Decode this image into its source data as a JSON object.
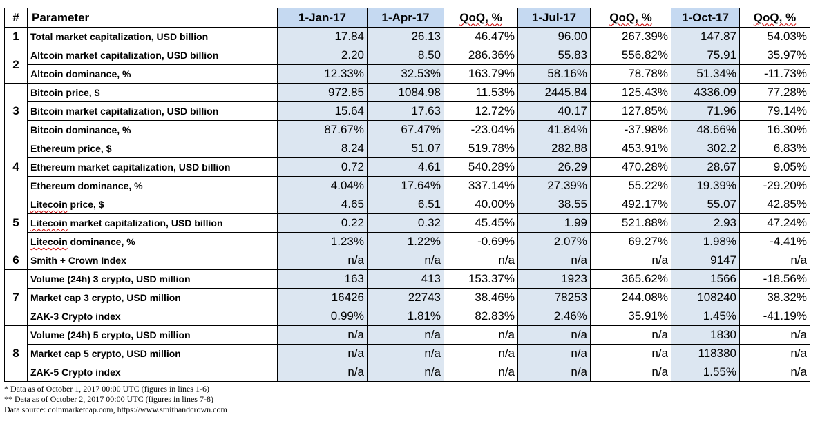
{
  "columns": [
    "#",
    "Parameter",
    "1-Jan-17",
    "1-Apr-17",
    "QoQ, %",
    "1-Jul-17",
    "QoQ, %",
    "1-Oct-17",
    "QoQ, %"
  ],
  "groups": [
    {
      "num": "1",
      "rows": [
        {
          "param": "Total market capitalization, USD billion",
          "values": [
            "17.84",
            "26.13",
            "46.47%",
            "96.00",
            "267.39%",
            "147.87",
            "54.03%"
          ]
        }
      ]
    },
    {
      "num": "2",
      "rows": [
        {
          "param": "Altcoin market capitalization, USD billion",
          "values": [
            "2.20",
            "8.50",
            "286.36%",
            "55.83",
            "556.82%",
            "75.91",
            "35.97%"
          ]
        },
        {
          "param": "Altcoin dominance, %",
          "values": [
            "12.33%",
            "32.53%",
            "163.79%",
            "58.16%",
            "78.78%",
            "51.34%",
            "-11.73%"
          ]
        }
      ]
    },
    {
      "num": "3",
      "rows": [
        {
          "param": "Bitcoin price, $",
          "values": [
            "972.85",
            "1084.98",
            "11.53%",
            "2445.84",
            "125.43%",
            "4336.09",
            "77.28%"
          ]
        },
        {
          "param": "Bitcoin market capitalization, USD billion",
          "values": [
            "15.64",
            "17.63",
            "12.72%",
            "40.17",
            "127.85%",
            "71.96",
            "79.14%"
          ]
        },
        {
          "param": "Bitcoin dominance, %",
          "values": [
            "87.67%",
            "67.47%",
            "-23.04%",
            "41.84%",
            "-37.98%",
            "48.66%",
            "16.30%"
          ]
        }
      ]
    },
    {
      "num": "4",
      "rows": [
        {
          "param": "Ethereum price, $",
          "values": [
            "8.24",
            "51.07",
            "519.78%",
            "282.88",
            "453.91%",
            "302.2",
            "6.83%"
          ]
        },
        {
          "param": "Ethereum market capitalization, USD billion",
          "values": [
            "0.72",
            "4.61",
            "540.28%",
            "26.29",
            "470.28%",
            "28.67",
            "9.05%"
          ]
        },
        {
          "param": "Ethereum dominance, %",
          "values": [
            "4.04%",
            "17.64%",
            "337.14%",
            "27.39%",
            "55.22%",
            "19.39%",
            "-29.20%"
          ]
        }
      ]
    },
    {
      "num": "5",
      "rows": [
        {
          "param_word": "Litecoin",
          "param_rest": " price, $",
          "values": [
            "4.65",
            "6.51",
            "40.00%",
            "38.55",
            "492.17%",
            "55.07",
            "42.85%"
          ]
        },
        {
          "param_word": "Litecoin",
          "param_rest": " market capitalization, USD billion",
          "values": [
            "0.22",
            "0.32",
            "45.45%",
            "1.99",
            "521.88%",
            "2.93",
            "47.24%"
          ]
        },
        {
          "param_word": "Litecoin",
          "param_rest": " dominance, %",
          "values": [
            "1.23%",
            "1.22%",
            "-0.69%",
            "2.07%",
            "69.27%",
            "1.98%",
            "-4.41%"
          ]
        }
      ]
    },
    {
      "num": "6",
      "rows": [
        {
          "param": "Smith + Crown Index",
          "values": [
            "n/a",
            "n/a",
            "n/a",
            "n/a",
            "n/a",
            "9147",
            "n/a"
          ]
        }
      ]
    },
    {
      "num": "7",
      "rows": [
        {
          "param": "Volume (24h) 3 crypto, USD million",
          "values": [
            "163",
            "413",
            "153.37%",
            "1923",
            "365.62%",
            "1566",
            "-18.56%"
          ]
        },
        {
          "param": "Market cap 3 crypto, USD million",
          "values": [
            "16426",
            "22743",
            "38.46%",
            "78253",
            "244.08%",
            "108240",
            "38.32%"
          ]
        },
        {
          "param": "ZAK-3 Crypto index",
          "values": [
            "0.99%",
            "1.81%",
            "82.83%",
            "2.46%",
            "35.91%",
            "1.45%",
            "-41.19%"
          ]
        }
      ]
    },
    {
      "num": "8",
      "rows": [
        {
          "param": "Volume (24h) 5 crypto, USD million",
          "values": [
            "n/a",
            "n/a",
            "n/a",
            "n/a",
            "n/a",
            "1830",
            "n/a"
          ]
        },
        {
          "param": "Market cap 5 crypto, USD million",
          "values": [
            "n/a",
            "n/a",
            "n/a",
            "n/a",
            "n/a",
            "118380",
            "n/a"
          ]
        },
        {
          "param": "ZAK-5 Crypto index",
          "values": [
            "n/a",
            "n/a",
            "n/a",
            "n/a",
            "n/a",
            "1.55%",
            "n/a"
          ]
        }
      ]
    }
  ],
  "footnotes": [
    "* Data as of October 1, 2017 00:00 UTC (figures in lines 1-6)",
    "** Data as of October 2, 2017 00:00 UTC (figures in lines 7-8)",
    "Data source: coinmarketcap.com, https://www.smithandcrown.com"
  ],
  "colors": {
    "header_blue": "#c5d9f1",
    "cell_blue": "#dce6f1",
    "border": "#000000"
  }
}
